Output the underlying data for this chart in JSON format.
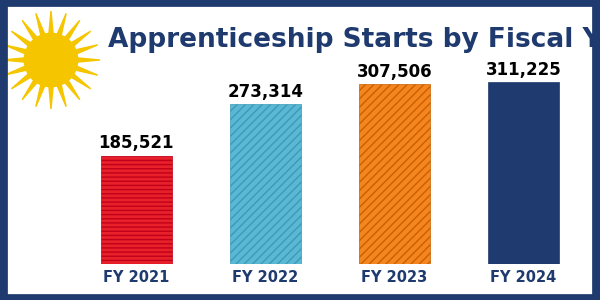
{
  "title": "Apprenticeship Starts by Fiscal Year",
  "categories": [
    "FY 2021",
    "FY 2022",
    "FY 2023",
    "FY 2024"
  ],
  "values": [
    185521,
    273314,
    307506,
    311225
  ],
  "labels": [
    "185,521",
    "273,314",
    "307,506",
    "311,225"
  ],
  "bar_colors": [
    "#e8202a",
    "#5ab8d4",
    "#f5861f",
    "#1e3a6e"
  ],
  "hatches": [
    "----",
    "////",
    "////",
    ""
  ],
  "hatch_edge_colors": [
    "#c0001a",
    "#3a9ab8",
    "#c86000",
    "#1e3a6e"
  ],
  "title_color": "#1e3a6e",
  "background_color": "#ffffff",
  "border_color": "#1e3a6e",
  "tick_color": "#1e3a6e",
  "sun_ray_color": "#f5c500",
  "sun_circle_color": "#f5c500",
  "ylim": [
    0,
    370000
  ],
  "title_fontsize": 19,
  "label_fontsize": 12,
  "tick_fontsize": 10.5,
  "num_rays": 20
}
